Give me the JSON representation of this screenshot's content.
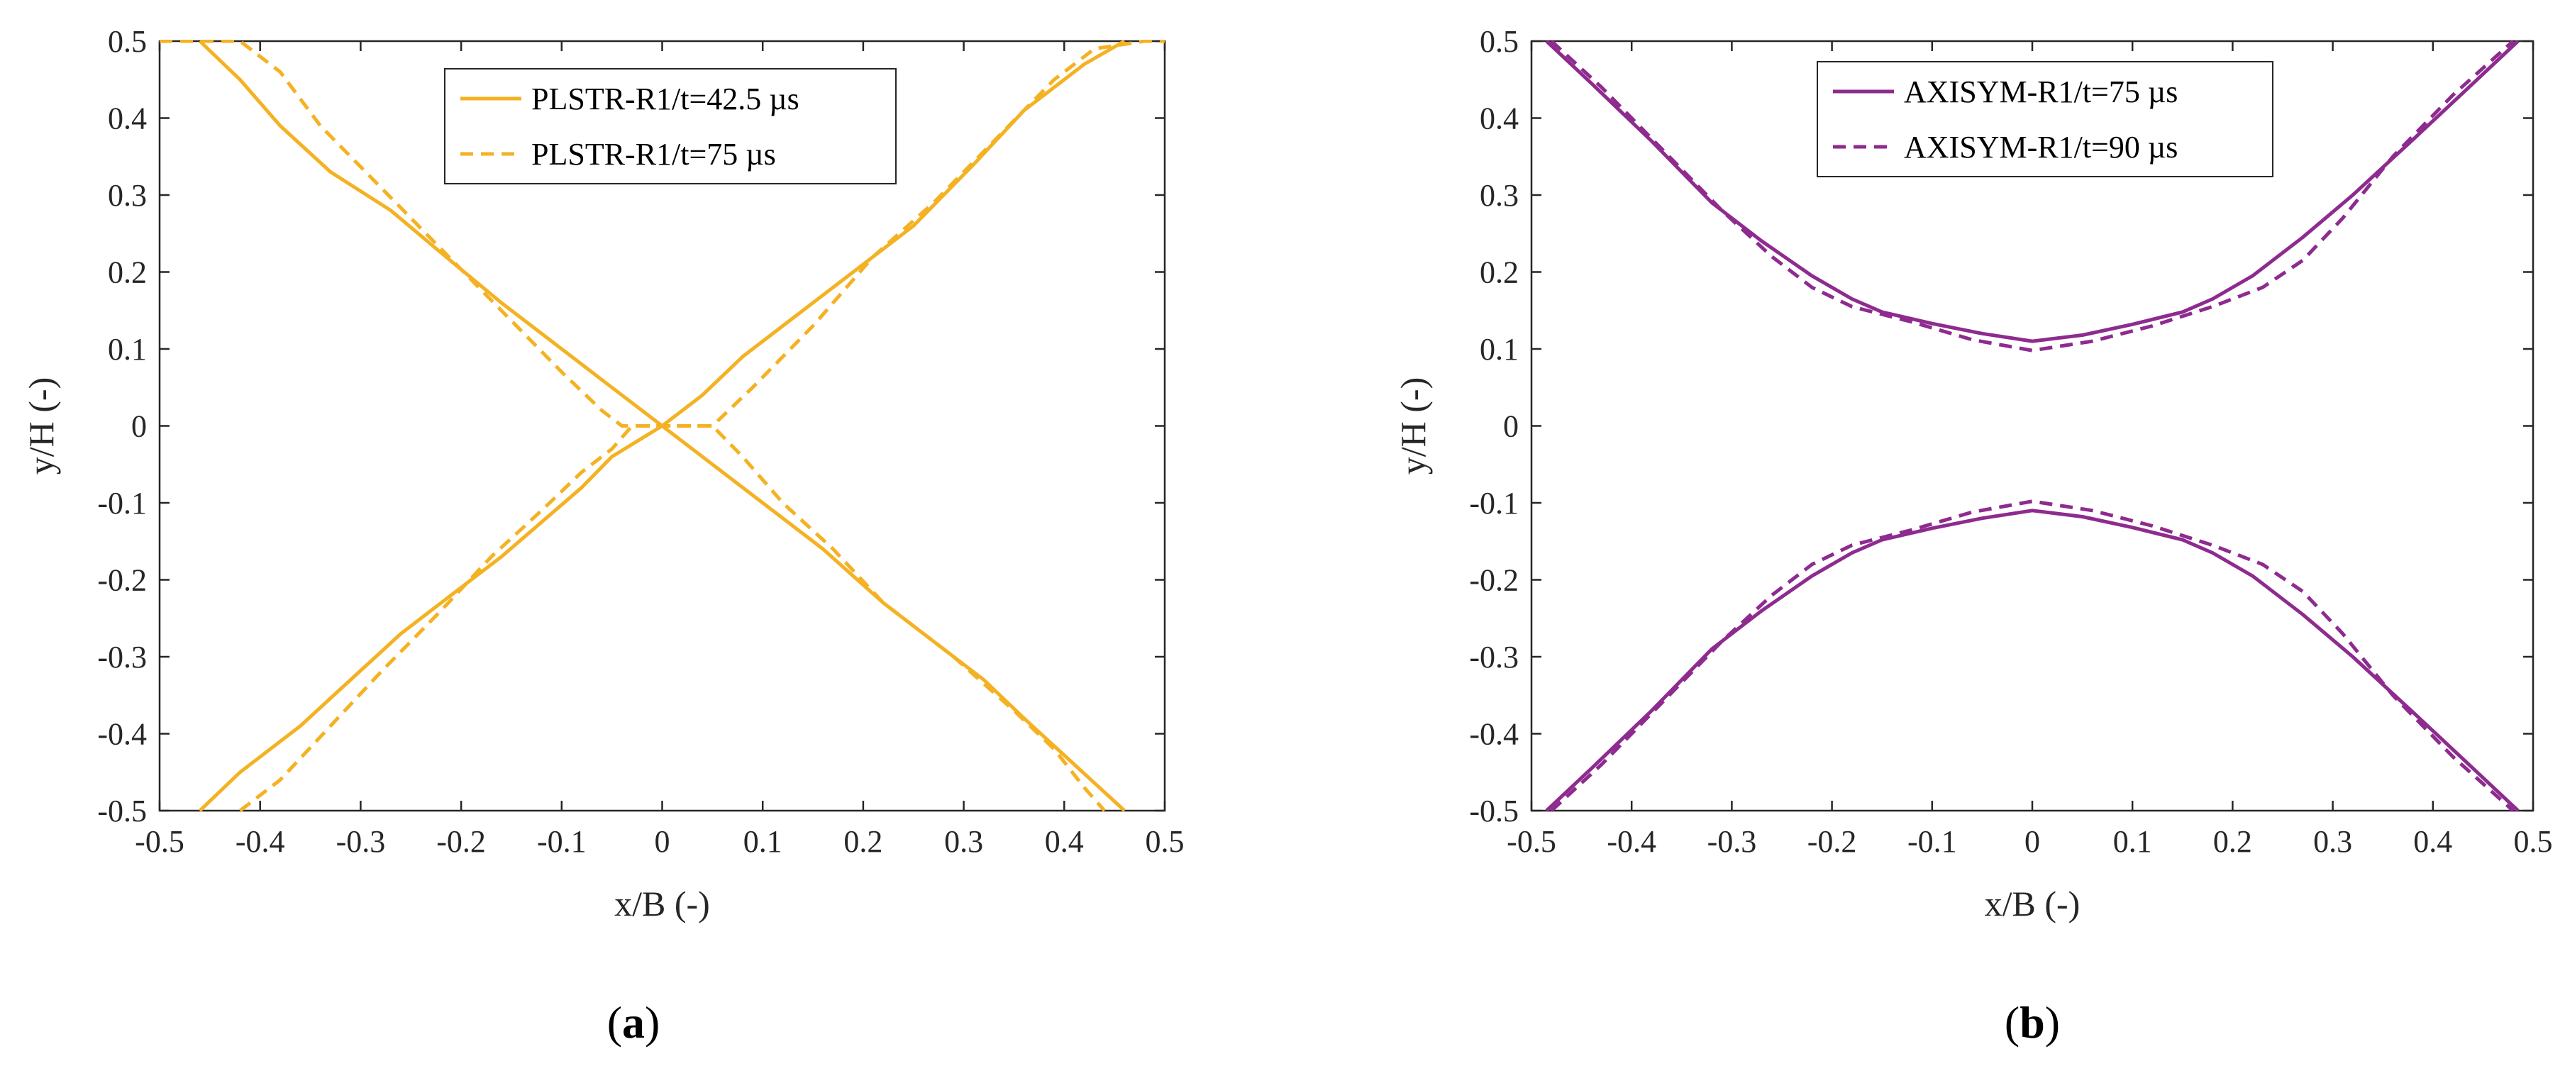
{
  "chart_data": [
    {
      "type": "line",
      "caption": {
        "open": "(",
        "letter": "a",
        "close": ")"
      },
      "xlabel": "x/B (-)",
      "ylabel": "y/H (-)",
      "xlim": [
        -0.5,
        0.5
      ],
      "ylim": [
        -0.5,
        0.5
      ],
      "xticks": [
        -0.5,
        -0.4,
        -0.3,
        -0.2,
        -0.1,
        0,
        0.1,
        0.2,
        0.3,
        0.4,
        0.5
      ],
      "yticks": [
        -0.5,
        -0.4,
        -0.3,
        -0.2,
        -0.1,
        0,
        0.1,
        0.2,
        0.3,
        0.4,
        0.5
      ],
      "xtick_labels": [
        "-0.5",
        "-0.4",
        "-0.3",
        "-0.2",
        "-0.1",
        "0",
        "0.1",
        "0.2",
        "0.3",
        "0.4",
        "0.5"
      ],
      "ytick_labels": [
        "-0.5",
        "-0.4",
        "-0.3",
        "-0.2",
        "-0.1",
        "0",
        "0.1",
        "0.2",
        "0.3",
        "0.4",
        "0.5"
      ],
      "grid": false,
      "legend_position": "top-center",
      "series": [
        {
          "name": "PLSTR-R1/t=42.5 µs",
          "style": "solid",
          "color": "#f4b223",
          "lines": [
            [
              [
                -0.46,
                0.5
              ],
              [
                -0.42,
                0.45
              ],
              [
                -0.38,
                0.39
              ],
              [
                -0.33,
                0.33
              ],
              [
                -0.27,
                0.28
              ],
              [
                -0.22,
                0.225
              ],
              [
                -0.16,
                0.16
              ],
              [
                -0.1,
                0.1
              ],
              [
                -0.05,
                0.05
              ],
              [
                0,
                0
              ],
              [
                0.05,
                -0.05
              ],
              [
                0.1,
                -0.1
              ],
              [
                0.16,
                -0.16
              ],
              [
                0.22,
                -0.23
              ],
              [
                0.27,
                -0.28
              ],
              [
                0.32,
                -0.33
              ],
              [
                0.36,
                -0.38
              ],
              [
                0.41,
                -0.44
              ],
              [
                0.46,
                -0.5
              ]
            ],
            [
              [
                -0.46,
                -0.5
              ],
              [
                -0.42,
                -0.45
              ],
              [
                -0.36,
                -0.39
              ],
              [
                -0.31,
                -0.33
              ],
              [
                -0.26,
                -0.27
              ],
              [
                -0.21,
                -0.22
              ],
              [
                -0.16,
                -0.17
              ],
              [
                -0.12,
                -0.125
              ],
              [
                -0.08,
                -0.08
              ],
              [
                -0.05,
                -0.04
              ],
              [
                0,
                0
              ],
              [
                0.04,
                0.04
              ],
              [
                0.08,
                0.09
              ],
              [
                0.13,
                0.14
              ],
              [
                0.18,
                0.19
              ],
              [
                0.25,
                0.26
              ],
              [
                0.31,
                0.34
              ],
              [
                0.36,
                0.41
              ],
              [
                0.42,
                0.47
              ],
              [
                0.46,
                0.5
              ]
            ]
          ]
        },
        {
          "name": "PLSTR-R1/t=75 µs",
          "style": "dashed",
          "color": "#f4b223",
          "lines": [
            [
              [
                -0.5,
                0.5
              ],
              [
                -0.42,
                0.5
              ],
              [
                -0.38,
                0.46
              ],
              [
                -0.34,
                0.39
              ],
              [
                -0.28,
                0.31
              ],
              [
                -0.22,
                0.23
              ],
              [
                -0.16,
                0.15
              ],
              [
                -0.1,
                0.07
              ],
              [
                -0.06,
                0.02
              ],
              [
                -0.04,
                0.0
              ],
              [
                -0.02,
                0.0
              ],
              [
                0,
                0
              ],
              [
                0.02,
                0.0
              ],
              [
                0.05,
                0.0
              ],
              [
                0.08,
                -0.04
              ],
              [
                0.12,
                -0.1
              ],
              [
                0.17,
                -0.16
              ],
              [
                0.22,
                -0.23
              ],
              [
                0.29,
                -0.3
              ],
              [
                0.35,
                -0.37
              ],
              [
                0.39,
                -0.42
              ],
              [
                0.42,
                -0.47
              ],
              [
                0.44,
                -0.5
              ]
            ],
            [
              [
                -0.42,
                -0.5
              ],
              [
                -0.38,
                -0.46
              ],
              [
                -0.33,
                -0.39
              ],
              [
                -0.28,
                -0.32
              ],
              [
                -0.22,
                -0.24
              ],
              [
                -0.17,
                -0.17
              ],
              [
                -0.12,
                -0.11
              ],
              [
                -0.08,
                -0.06
              ],
              [
                -0.05,
                -0.03
              ],
              [
                -0.03,
                0.0
              ],
              [
                0,
                0
              ],
              [
                0.03,
                0.0
              ],
              [
                0.05,
                0.0
              ],
              [
                0.09,
                0.05
              ],
              [
                0.15,
                0.13
              ],
              [
                0.21,
                0.22
              ],
              [
                0.27,
                0.29
              ],
              [
                0.33,
                0.37
              ],
              [
                0.39,
                0.45
              ],
              [
                0.43,
                0.49
              ],
              [
                0.48,
                0.5
              ],
              [
                0.5,
                0.5
              ]
            ]
          ]
        }
      ]
    },
    {
      "type": "line",
      "caption": {
        "open": "(",
        "letter": "b",
        "close": ")"
      },
      "xlabel": "x/B (-)",
      "ylabel": "y/H (-)",
      "xlim": [
        -0.5,
        0.5
      ],
      "ylim": [
        -0.5,
        0.5
      ],
      "xticks": [
        -0.5,
        -0.4,
        -0.3,
        -0.2,
        -0.1,
        0,
        0.1,
        0.2,
        0.3,
        0.4,
        0.5
      ],
      "yticks": [
        -0.5,
        -0.4,
        -0.3,
        -0.2,
        -0.1,
        0,
        0.1,
        0.2,
        0.3,
        0.4,
        0.5
      ],
      "xtick_labels": [
        "-0.5",
        "-0.4",
        "-0.3",
        "-0.2",
        "-0.1",
        "0",
        "0.1",
        "0.2",
        "0.3",
        "0.4",
        "0.5"
      ],
      "ytick_labels": [
        "-0.5",
        "-0.4",
        "-0.3",
        "-0.2",
        "-0.1",
        "0",
        "0.1",
        "0.2",
        "0.3",
        "0.4",
        "0.5"
      ],
      "grid": false,
      "legend_position": "top-center",
      "series": [
        {
          "name": "AXISYM-R1/t=75 µs",
          "style": "solid",
          "color": "#8e2b8f",
          "lines": [
            [
              [
                -0.485,
                0.5
              ],
              [
                -0.44,
                0.445
              ],
              [
                -0.38,
                0.37
              ],
              [
                -0.32,
                0.29
              ],
              [
                -0.27,
                0.24
              ],
              [
                -0.22,
                0.195
              ],
              [
                -0.18,
                0.165
              ],
              [
                -0.15,
                0.148
              ],
              [
                -0.1,
                0.133
              ],
              [
                -0.05,
                0.12
              ],
              [
                0,
                0.11
              ],
              [
                0.05,
                0.118
              ],
              [
                0.1,
                0.132
              ],
              [
                0.15,
                0.148
              ],
              [
                0.18,
                0.165
              ],
              [
                0.22,
                0.195
              ],
              [
                0.27,
                0.245
              ],
              [
                0.32,
                0.3
              ],
              [
                0.38,
                0.372
              ],
              [
                0.44,
                0.445
              ],
              [
                0.485,
                0.5
              ]
            ],
            [
              [
                -0.485,
                -0.5
              ],
              [
                -0.44,
                -0.445
              ],
              [
                -0.38,
                -0.37
              ],
              [
                -0.32,
                -0.29
              ],
              [
                -0.27,
                -0.24
              ],
              [
                -0.22,
                -0.195
              ],
              [
                -0.18,
                -0.165
              ],
              [
                -0.15,
                -0.148
              ],
              [
                -0.1,
                -0.133
              ],
              [
                -0.05,
                -0.12
              ],
              [
                0,
                -0.11
              ],
              [
                0.05,
                -0.118
              ],
              [
                0.1,
                -0.132
              ],
              [
                0.15,
                -0.148
              ],
              [
                0.18,
                -0.165
              ],
              [
                0.22,
                -0.195
              ],
              [
                0.27,
                -0.245
              ],
              [
                0.32,
                -0.3
              ],
              [
                0.38,
                -0.372
              ],
              [
                0.44,
                -0.445
              ],
              [
                0.485,
                -0.5
              ]
            ]
          ]
        },
        {
          "name": "AXISYM-R1/t=90 µs",
          "style": "dashed",
          "color": "#8e2b8f",
          "lines": [
            [
              [
                -0.48,
                0.5
              ],
              [
                -0.43,
                0.44
              ],
              [
                -0.37,
                0.36
              ],
              [
                -0.31,
                0.28
              ],
              [
                -0.26,
                0.22
              ],
              [
                -0.22,
                0.18
              ],
              [
                -0.18,
                0.155
              ],
              [
                -0.12,
                0.135
              ],
              [
                -0.06,
                0.112
              ],
              [
                0,
                0.098
              ],
              [
                0.06,
                0.11
              ],
              [
                0.12,
                0.13
              ],
              [
                0.18,
                0.155
              ],
              [
                0.23,
                0.18
              ],
              [
                0.27,
                0.215
              ],
              [
                0.31,
                0.27
              ],
              [
                0.36,
                0.35
              ],
              [
                0.42,
                0.43
              ],
              [
                0.48,
                0.5
              ]
            ],
            [
              [
                -0.48,
                -0.5
              ],
              [
                -0.43,
                -0.44
              ],
              [
                -0.37,
                -0.36
              ],
              [
                -0.31,
                -0.28
              ],
              [
                -0.26,
                -0.22
              ],
              [
                -0.22,
                -0.18
              ],
              [
                -0.18,
                -0.155
              ],
              [
                -0.12,
                -0.135
              ],
              [
                -0.06,
                -0.112
              ],
              [
                0,
                -0.098
              ],
              [
                0.06,
                -0.11
              ],
              [
                0.12,
                -0.13
              ],
              [
                0.18,
                -0.155
              ],
              [
                0.23,
                -0.18
              ],
              [
                0.27,
                -0.215
              ],
              [
                0.31,
                -0.27
              ],
              [
                0.36,
                -0.35
              ],
              [
                0.42,
                -0.43
              ],
              [
                0.48,
                -0.5
              ]
            ]
          ]
        }
      ]
    }
  ]
}
